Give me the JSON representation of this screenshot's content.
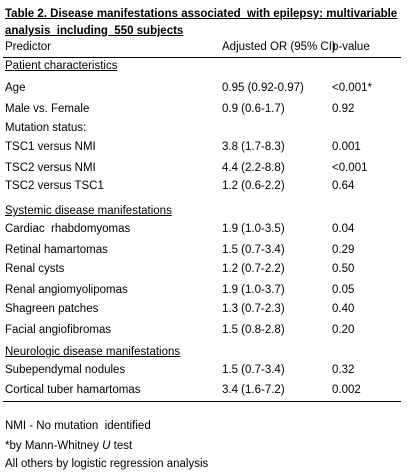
{
  "title_lines": [
    "Table 2. Disease manifestations associated  with epilepsy: multivariable",
    "analysis  including  550 subjects"
  ],
  "header": [
    "Predictor",
    "Adjusted OR (95% CI)",
    "p-value"
  ],
  "sections": [
    {
      "heading": "Patient characteristics",
      "rows": [
        [
          "Age",
          "0.95 (0.92-0.97)",
          "<0.001*"
        ],
        [
          "Male vs. Female",
          "0.9 (0.6-1.7)",
          "0.92"
        ],
        [
          "Mutation status:"
        ],
        [
          "TSC1 versus NMI",
          "3.8 (1.7-8.3)",
          "0.001"
        ],
        [
          "TSC2 versus NMI",
          "4.4 (2.2-8.8)",
          "<0.001"
        ],
        [
          "TSC2 versus TSC1",
          "1.2 (0.6-2.2)",
          "0.64"
        ]
      ]
    },
    {
      "heading": "Systemic disease manifestations",
      "rows": [
        [
          "Cardiac  rhabdomyomas",
          "1.9 (1.0-3.5)",
          "0.04"
        ],
        [
          "Retinal hamartomas",
          "1.5 (0.7-3.4)",
          "0.29"
        ],
        [
          "Renal cysts",
          "1.2 (0.7-2.2)",
          "0.50"
        ],
        [
          "Renal angiomyolipomas",
          "1.9 (1.0-3.7)",
          "0.05"
        ],
        [
          "Shagreen patches",
          "1.3 (0.7-2.3)",
          "0.40"
        ],
        [
          "Facial angiofibromas",
          "1.5 (0.8-2.8)",
          "0.20"
        ]
      ]
    },
    {
      "heading": "Neurologic disease manifestations",
      "rows": [
        [
          "Subependymal nodules",
          "1.5 (0.7-3.4)",
          "0.32"
        ],
        [
          "Cortical tuber hamartomas",
          "3.4 (1.6-7.2)",
          "0.002"
        ]
      ]
    }
  ],
  "notes": [
    "NMI - No mutation  identified",
    [
      "*by Mann-Whitney ",
      "U",
      " test"
    ],
    "All others by logistic regression analysis"
  ]
}
